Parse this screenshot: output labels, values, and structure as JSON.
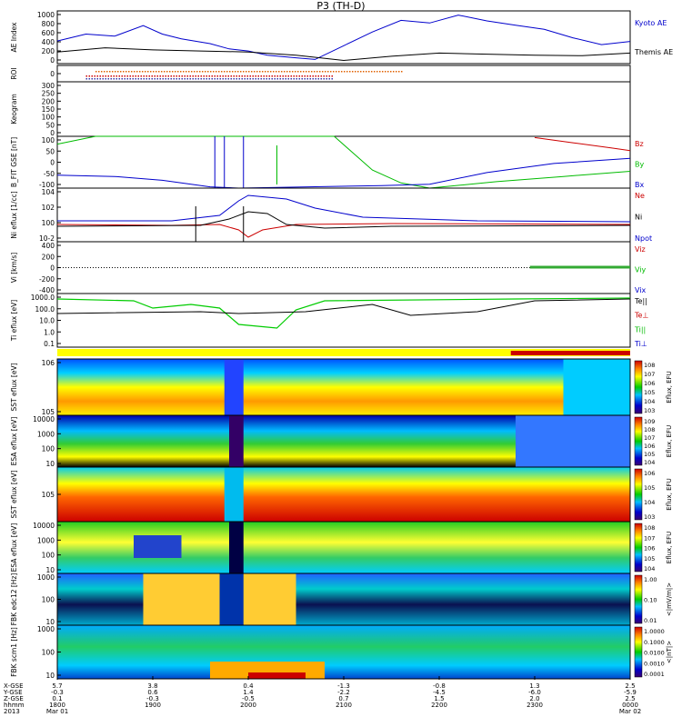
{
  "chart_data": {
    "type": "line",
    "title": "P3 (TH-D)",
    "time_axis": {
      "ticks": [
        {
          "x": "5.7",
          "y": "-0.3",
          "z": "0.1",
          "hhmm": "1800",
          "date": "Mar 01"
        },
        {
          "x": "3.8",
          "y": "0.6",
          "z": "-0.3",
          "hhmm": "1900",
          "date": ""
        },
        {
          "x": "0.4",
          "y": "1.4",
          "z": "-0.5",
          "hhmm": "2000",
          "date": ""
        },
        {
          "x": "-1.3",
          "y": "-2.2",
          "z": "0.7",
          "hhmm": "2100",
          "date": ""
        },
        {
          "x": "-0.8",
          "y": "-4.5",
          "z": "1.5",
          "hhmm": "2200",
          "date": ""
        },
        {
          "x": "1.3",
          "y": "-6.0",
          "z": "2.0",
          "hhmm": "2300",
          "date": ""
        },
        {
          "x": "2.5",
          "y": "-5.9",
          "z": "2.5",
          "hhmm": "0000",
          "date": "Mar 02"
        }
      ],
      "row_labels": [
        "X-GSE",
        "Y-GSE",
        "Z-GSE",
        "hhmm",
        "2013"
      ]
    },
    "panels": [
      {
        "id": "ae",
        "ylabel": "AE Index",
        "ylim": [
          0,
          1000
        ],
        "ticks": [
          "1000",
          "800",
          "600",
          "400",
          "200",
          "0"
        ],
        "series": [
          {
            "name": "Kyoto AE",
            "color": "#0000cc",
            "t": [
              18.0,
              18.3,
              18.6,
              18.9,
              19.1,
              19.3,
              19.6,
              19.8,
              20.0,
              20.2,
              20.5,
              20.7,
              21.0,
              21.3,
              21.6,
              21.9,
              22.2,
              22.5,
              22.8,
              23.1,
              23.4,
              23.7,
              24.0
            ],
            "v": [
              430,
              560,
              520,
              720,
              560,
              470,
              380,
              280,
              240,
              160,
              110,
              80,
              340,
              600,
              820,
              770,
              920,
              810,
              730,
              650,
              490,
              360,
              420
            ]
          },
          {
            "name": "Themis AE",
            "color": "#000000",
            "t": [
              18.0,
              18.5,
              19.0,
              19.5,
              20.0,
              20.5,
              21.0,
              21.5,
              22.0,
              22.5,
              23.0,
              23.5,
              24.0
            ],
            "v": [
              220,
              300,
              260,
              240,
              220,
              160,
              60,
              140,
              200,
              180,
              160,
              150,
              200
            ]
          }
        ]
      },
      {
        "id": "roi",
        "ylabel": "ROI",
        "ticks": [
          "0"
        ]
      },
      {
        "id": "keogram",
        "ylabel": "Keogram",
        "ticks": [
          "300",
          "250",
          "200",
          "150",
          "100",
          "50",
          "0"
        ]
      },
      {
        "id": "bfit",
        "ylabel": "B_FIT GSE [nT]",
        "ylim": [
          -100,
          100
        ],
        "ticks": [
          "100",
          "50",
          "0",
          "-50",
          "-100"
        ],
        "series": [
          {
            "name": "Bz",
            "color": "#cc0000",
            "t": [
              23.0,
              23.4,
              23.8,
              24.0
            ],
            "v": [
              95,
              75,
              55,
              45
            ]
          },
          {
            "name": "By",
            "color": "#00bb00",
            "t": [
              18.0,
              18.4,
              20.9,
              21.3,
              21.6,
              21.9,
              22.6,
              23.3,
              24.0
            ],
            "v": [
              70,
              100,
              100,
              -30,
              -80,
              -100,
              -75,
              -55,
              -35
            ]
          },
          {
            "name": "Bx",
            "color": "#0000cc",
            "t": [
              18.0,
              18.6,
              19.1,
              19.6,
              19.9,
              21.4,
              21.9,
              22.5,
              23.2,
              24.0
            ],
            "v": [
              -50,
              -55,
              -70,
              -95,
              -100,
              -90,
              -85,
              -40,
              -5,
              15
            ]
          }
        ]
      },
      {
        "id": "ni",
        "ylabel": "Ni eflux [1/cc]",
        "ticks": [
          "10^4",
          "10^2",
          "10^0",
          "10^-2"
        ],
        "series": [
          {
            "name": "Ne",
            "color": "#cc0000"
          },
          {
            "name": "Ni",
            "color": "#000000"
          },
          {
            "name": "Npot",
            "color": "#0000cc"
          }
        ]
      },
      {
        "id": "vi",
        "ylabel": "Vi [km/s]",
        "ylim": [
          -500,
          500
        ],
        "ticks": [
          "400",
          "200",
          "0",
          "-200",
          "-400"
        ],
        "series": [
          {
            "name": "Viz",
            "color": "#cc0000"
          },
          {
            "name": "Viy",
            "color": "#00bb00"
          },
          {
            "name": "Vix",
            "color": "#0000cc"
          }
        ]
      },
      {
        "id": "ti",
        "ylabel": "Ti eflux [eV]",
        "ticks": [
          "1000.0",
          "100.0",
          "10.0",
          "1.0",
          "0.1"
        ],
        "series": [
          {
            "name": "Te||",
            "color": "#000000"
          },
          {
            "name": "Te⊥",
            "color": "#cc0000"
          },
          {
            "name": "Ti||",
            "color": "#00bb00"
          },
          {
            "name": "Ti⊥",
            "color": "#0000cc"
          }
        ]
      },
      {
        "id": "sst_e",
        "ylabel": "SST eflux [eV]",
        "ticks": [
          "10^6",
          "10^5"
        ],
        "cbar_label": "Eflux, EFU",
        "cbar_ticks": [
          "10^8",
          "10^7",
          "10^6",
          "10^5",
          "10^4",
          "10^3"
        ]
      },
      {
        "id": "esa_e",
        "ylabel": "ESA eflux [eV]",
        "ticks": [
          "10000",
          "1000",
          "100",
          "10"
        ],
        "cbar_label": "Eflux, EFU",
        "cbar_ticks": [
          "10^9",
          "10^8",
          "10^7",
          "10^6",
          "10^5",
          "10^4"
        ]
      },
      {
        "id": "sst_i",
        "ylabel": "SST eflux [eV]",
        "ticks": [
          "10^5"
        ],
        "cbar_label": "Eflux, EFU",
        "cbar_ticks": [
          "10^6",
          "10^5",
          "10^4",
          "10^3"
        ]
      },
      {
        "id": "esa_i",
        "ylabel": "ESA eflux [eV]",
        "ticks": [
          "10000",
          "1000",
          "100",
          "10"
        ],
        "cbar_label": "Eflux, EFU",
        "cbar_ticks": [
          "10^8",
          "10^7",
          "10^6",
          "10^5",
          "10^4"
        ]
      },
      {
        "id": "fbk_e",
        "ylabel": "FBK edc12 [Hz]",
        "ticks": [
          "1000",
          "100",
          "10"
        ],
        "cbar_label": "<|mV/m|>",
        "cbar_ticks": [
          "1.00",
          "0.10",
          "0.01"
        ]
      },
      {
        "id": "fbk_b",
        "ylabel": "FBK scm1 [Hz]",
        "ticks": [
          "1000",
          "100",
          "10"
        ],
        "cbar_label": "<|nT|>",
        "cbar_ticks": [
          "1.0000",
          "0.1000",
          "0.0100",
          "0.0010",
          "0.0001"
        ]
      }
    ]
  }
}
